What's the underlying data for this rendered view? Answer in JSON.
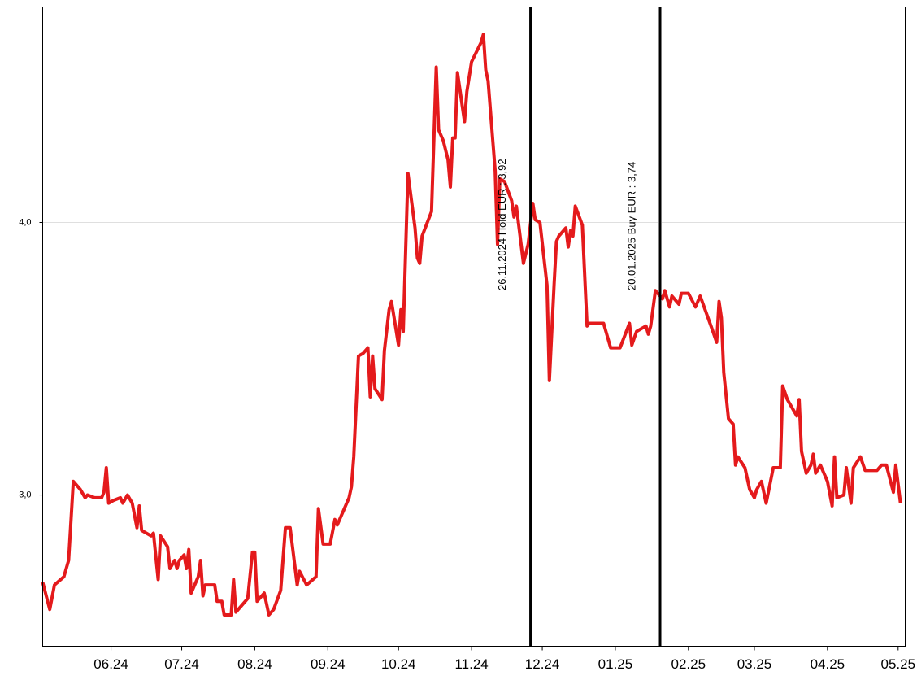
{
  "chart_data": {
    "type": "line",
    "color": "#e41a1c",
    "xlim": [
      "2024-05-03",
      "2025-05-04"
    ],
    "ylim": [
      2.445,
      4.791
    ],
    "yticks": [
      {
        "value": 3,
        "label": "3,0"
      },
      {
        "value": 4,
        "label": "4,0"
      }
    ],
    "xticks": [
      {
        "value": "2024-06-01",
        "label": "06.24"
      },
      {
        "value": "2024-07-01",
        "label": "07.24"
      },
      {
        "value": "2024-08-01",
        "label": "08.24"
      },
      {
        "value": "2024-09-01",
        "label": "09.24"
      },
      {
        "value": "2024-10-01",
        "label": "10.24"
      },
      {
        "value": "2024-11-01",
        "label": "11.24"
      },
      {
        "value": "2024-12-01",
        "label": "12.24"
      },
      {
        "value": "2025-01-01",
        "label": "01.25"
      },
      {
        "value": "2025-02-01",
        "label": "02.25"
      },
      {
        "value": "2025-03-01",
        "label": "03.25"
      },
      {
        "value": "2025-04-01",
        "label": "04.25"
      },
      {
        "value": "2025-05-01",
        "label": "05.25"
      }
    ],
    "grid": true,
    "annotations": [
      {
        "x": "2024-11-26",
        "text": "26.11.2024 Hold EUR : 3,92"
      },
      {
        "x": "2025-01-20",
        "text": "20.01.2025 Buy EUR : 3,74"
      }
    ],
    "x": [
      "2024-05-03",
      "2024-05-06",
      "2024-05-08",
      "2024-05-12",
      "2024-05-14",
      "2024-05-16",
      "2024-05-19",
      "2024-05-21",
      "2024-05-22",
      "2024-05-25",
      "2024-05-28",
      "2024-05-29",
      "2024-05-30",
      "2024-05-31",
      "2024-06-02",
      "2024-06-05",
      "2024-06-06",
      "2024-06-08",
      "2024-06-10",
      "2024-06-12",
      "2024-06-13",
      "2024-06-14",
      "2024-06-18",
      "2024-06-19",
      "2024-06-21",
      "2024-06-22",
      "2024-06-25",
      "2024-06-26",
      "2024-06-28",
      "2024-06-29",
      "2024-06-30",
      "2024-07-02",
      "2024-07-03",
      "2024-07-04",
      "2024-07-05",
      "2024-07-08",
      "2024-07-09",
      "2024-07-10",
      "2024-07-11",
      "2024-07-15",
      "2024-07-16",
      "2024-07-18",
      "2024-07-19",
      "2024-07-22",
      "2024-07-23",
      "2024-07-24",
      "2024-07-29",
      "2024-07-31",
      "2024-08-01",
      "2024-08-02",
      "2024-08-05",
      "2024-08-07",
      "2024-08-09",
      "2024-08-12",
      "2024-08-14",
      "2024-08-16",
      "2024-08-19",
      "2024-08-20",
      "2024-08-23",
      "2024-08-27",
      "2024-08-28",
      "2024-08-30",
      "2024-09-02",
      "2024-09-04",
      "2024-09-05",
      "2024-09-10",
      "2024-09-11",
      "2024-09-12",
      "2024-09-14",
      "2024-09-16",
      "2024-09-18",
      "2024-09-19",
      "2024-09-20",
      "2024-09-21",
      "2024-09-24",
      "2024-09-25",
      "2024-09-27",
      "2024-09-28",
      "2024-10-01",
      "2024-10-02",
      "2024-10-03",
      "2024-10-05",
      "2024-10-08",
      "2024-10-09",
      "2024-10-10",
      "2024-10-11",
      "2024-10-15",
      "2024-10-17",
      "2024-10-18",
      "2024-10-20",
      "2024-10-22",
      "2024-10-23",
      "2024-10-24",
      "2024-10-25",
      "2024-10-26",
      "2024-10-29",
      "2024-10-30",
      "2024-11-01",
      "2024-11-05",
      "2024-11-06",
      "2024-11-07",
      "2024-11-08",
      "2024-11-11",
      "2024-11-12",
      "2024-11-13",
      "2024-11-15",
      "2024-11-18",
      "2024-11-19",
      "2024-11-20",
      "2024-11-23",
      "2024-11-25",
      "2024-11-27",
      "2024-11-28",
      "2024-11-30",
      "2024-12-03",
      "2024-12-04",
      "2024-12-06",
      "2024-12-07",
      "2024-12-08",
      "2024-12-11",
      "2024-12-12",
      "2024-12-13",
      "2024-12-14",
      "2024-12-15",
      "2024-12-18",
      "2024-12-20",
      "2024-12-21",
      "2024-12-27",
      "2024-12-30",
      "2025-01-03",
      "2025-01-07",
      "2025-01-08",
      "2025-01-10",
      "2025-01-14",
      "2025-01-15",
      "2025-01-16",
      "2025-01-18",
      "2025-01-21",
      "2025-01-22",
      "2025-01-24",
      "2025-01-25",
      "2025-01-28",
      "2025-01-29",
      "2025-02-01",
      "2025-02-04",
      "2025-02-06",
      "2025-02-11",
      "2025-02-13",
      "2025-02-14",
      "2025-02-15",
      "2025-02-16",
      "2025-02-18",
      "2025-02-20",
      "2025-02-21",
      "2025-02-22",
      "2025-02-25",
      "2025-02-27",
      "2025-03-01",
      "2025-03-02",
      "2025-03-04",
      "2025-03-06",
      "2025-03-09",
      "2025-03-12",
      "2025-03-13",
      "2025-03-15",
      "2025-03-19",
      "2025-03-20",
      "2025-03-21",
      "2025-03-23",
      "2025-03-25",
      "2025-03-26",
      "2025-03-27",
      "2025-03-29",
      "2025-04-01",
      "2025-04-03",
      "2025-04-04",
      "2025-04-05",
      "2025-04-08",
      "2025-04-09",
      "2025-04-11",
      "2025-04-12",
      "2025-04-15",
      "2025-04-17",
      "2025-04-22",
      "2025-04-24",
      "2025-04-26",
      "2025-04-29",
      "2025-04-30",
      "2025-05-02"
    ],
    "values": [
      2.68,
      2.58,
      2.67,
      2.7,
      2.76,
      3.05,
      3.02,
      2.99,
      3.0,
      2.99,
      2.99,
      3.01,
      3.1,
      2.97,
      2.98,
      2.99,
      2.97,
      3.0,
      2.97,
      2.88,
      2.96,
      2.87,
      2.85,
      2.86,
      2.69,
      2.85,
      2.81,
      2.73,
      2.76,
      2.73,
      2.76,
      2.78,
      2.73,
      2.8,
      2.64,
      2.7,
      2.76,
      2.63,
      2.67,
      2.67,
      2.61,
      2.61,
      2.56,
      2.56,
      2.69,
      2.57,
      2.62,
      2.79,
      2.79,
      2.61,
      2.64,
      2.56,
      2.58,
      2.65,
      2.88,
      2.88,
      2.67,
      2.72,
      2.67,
      2.7,
      2.95,
      2.82,
      2.82,
      2.91,
      2.89,
      2.99,
      3.03,
      3.14,
      3.51,
      3.52,
      3.54,
      3.36,
      3.51,
      3.39,
      3.35,
      3.53,
      3.68,
      3.71,
      3.55,
      3.68,
      3.6,
      4.18,
      3.98,
      3.87,
      3.85,
      3.95,
      4.04,
      4.57,
      4.34,
      4.3,
      4.23,
      4.13,
      4.31,
      4.31,
      4.55,
      4.37,
      4.48,
      4.59,
      4.66,
      4.69,
      4.56,
      4.52,
      4.19,
      3.92,
      4.16,
      4.15,
      4.08,
      4.02,
      4.06,
      3.85,
      3.92,
      4.07,
      4.01,
      4.0,
      3.77,
      3.42,
      3.77,
      3.93,
      3.95,
      3.98,
      3.91,
      3.97,
      3.95,
      4.06,
      3.99,
      3.62,
      3.63,
      3.63,
      3.54,
      3.54,
      3.63,
      3.55,
      3.6,
      3.62,
      3.59,
      3.62,
      3.75,
      3.72,
      3.75,
      3.69,
      3.73,
      3.7,
      3.74,
      3.74,
      3.69,
      3.73,
      3.61,
      3.56,
      3.71,
      3.65,
      3.45,
      3.28,
      3.26,
      3.11,
      3.14,
      3.1,
      3.02,
      2.99,
      3.02,
      3.05,
      2.97,
      3.1,
      3.1,
      3.4,
      3.35,
      3.29,
      3.35,
      3.16,
      3.08,
      3.11,
      3.15,
      3.08,
      3.11,
      3.05,
      2.96,
      3.14,
      2.99,
      3.0,
      3.1,
      2.97,
      3.1,
      3.14,
      3.09,
      3.09,
      3.11,
      3.11,
      3.01,
      3.11,
      2.97
    ]
  }
}
